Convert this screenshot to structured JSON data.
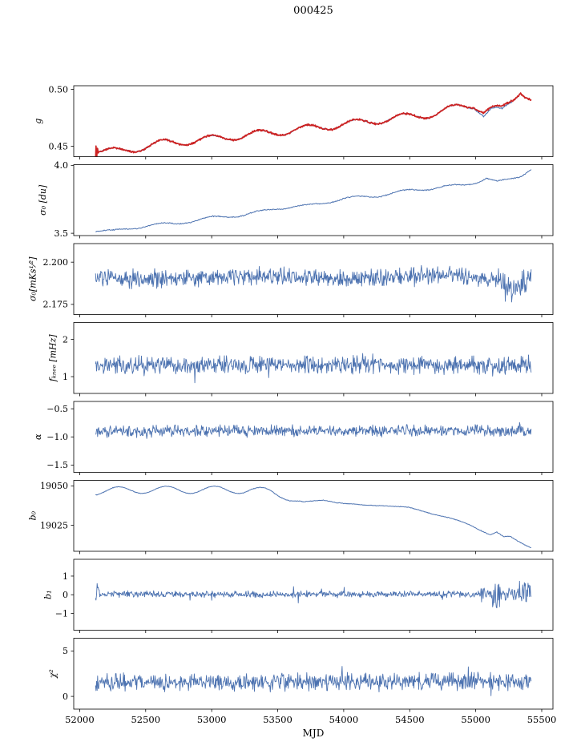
{
  "chart_data": {
    "type": "line",
    "title": "000425",
    "xlabel": "MJD",
    "grid": false,
    "legend_position": "none",
    "xlim": [
      51955,
      55585
    ],
    "x_range_data": [
      52120,
      55420
    ],
    "xticks": [
      52000,
      52500,
      53000,
      53500,
      54000,
      54500,
      55000,
      55500
    ],
    "xtick_labels": [
      "52000",
      "52500",
      "53000",
      "53500",
      "54000",
      "54500",
      "55000",
      "55500"
    ],
    "colors": {
      "line": "#4c72b0",
      "overlay": "#cc2222",
      "axis": "#000000"
    },
    "panels": [
      {
        "id": "g",
        "ylabel": "g",
        "ylim": [
          0.4408,
          0.5032
        ],
        "yticks": [
          0.45,
          0.5
        ],
        "ytick_labels": [
          "0.45",
          "0.50"
        ],
        "series": [
          {
            "name": "g-model",
            "color": "#4c72b0",
            "lw": 1.1,
            "step": 5,
            "seed": 11,
            "noise": 0.0006,
            "anchors": [
              [
                52120,
                0.4462
              ],
              [
                52300,
                0.4452
              ],
              [
                52600,
                0.4522
              ],
              [
                52900,
                0.4552
              ],
              [
                53200,
                0.459
              ],
              [
                53500,
                0.4625
              ],
              [
                53800,
                0.4665
              ],
              [
                54100,
                0.4705
              ],
              [
                54400,
                0.4748
              ],
              [
                54700,
                0.4788
              ],
              [
                54870,
                0.4845
              ],
              [
                54990,
                0.4862
              ],
              [
                55060,
                0.4778
              ],
              [
                55120,
                0.482
              ],
              [
                55200,
                0.48
              ],
              [
                55280,
                0.49
              ],
              [
                55340,
                0.4992
              ],
              [
                55420,
                0.4922
              ]
            ],
            "osc": {
              "amp": 0.0032,
              "period": 365,
              "phase": 52170
            }
          },
          {
            "name": "g-data",
            "color": "#cc2222",
            "lw": 1.7,
            "step": 4,
            "seed": 12,
            "noise": 0.0009,
            "noise_segments": [
              {
                "from": 52118,
                "to": 52142,
                "amp": 0.012
              }
            ],
            "anchors": [
              [
                52120,
                0.4462
              ],
              [
                52300,
                0.4452
              ],
              [
                52600,
                0.4522
              ],
              [
                52900,
                0.4552
              ],
              [
                53200,
                0.459
              ],
              [
                53500,
                0.4625
              ],
              [
                53800,
                0.4665
              ],
              [
                54100,
                0.4705
              ],
              [
                54400,
                0.4748
              ],
              [
                54700,
                0.4788
              ],
              [
                54870,
                0.4845
              ],
              [
                54990,
                0.4868
              ],
              [
                55060,
                0.4812
              ],
              [
                55120,
                0.4832
              ],
              [
                55200,
                0.4822
              ],
              [
                55280,
                0.4905
              ],
              [
                55340,
                0.4992
              ],
              [
                55420,
                0.4925
              ]
            ],
            "osc": {
              "amp": 0.0032,
              "period": 365,
              "phase": 52170
            }
          }
        ]
      },
      {
        "id": "sigma0-du",
        "ylabel": "σ₀ [du]",
        "ylim": [
          3.483,
          4.005
        ],
        "yticks": [
          3.5,
          4.0
        ],
        "ytick_labels": [
          "3.5",
          "4.0"
        ],
        "series": [
          {
            "name": "sigma0-du",
            "color": "#4c72b0",
            "lw": 1.0,
            "step": 5,
            "seed": 21,
            "noise": 0.005,
            "anchors": [
              [
                52130,
                3.52
              ],
              [
                52250,
                3.515
              ],
              [
                52500,
                3.555
              ],
              [
                52750,
                3.575
              ],
              [
                53000,
                3.615
              ],
              [
                53250,
                3.635
              ],
              [
                53500,
                3.685
              ],
              [
                53750,
                3.705
              ],
              [
                54000,
                3.755
              ],
              [
                54250,
                3.775
              ],
              [
                54500,
                3.815
              ],
              [
                54700,
                3.835
              ],
              [
                54900,
                3.855
              ],
              [
                55000,
                3.875
              ],
              [
                55080,
                3.905
              ],
              [
                55160,
                3.875
              ],
              [
                55250,
                3.895
              ],
              [
                55340,
                3.925
              ],
              [
                55420,
                3.975
              ]
            ],
            "osc": {
              "amp": 0.01,
              "period": 365,
              "phase": 52170
            }
          }
        ]
      },
      {
        "id": "sigma0-mks",
        "ylabel": "σ₀[mKs¹⁄²]",
        "ylim": [
          2.169,
          2.211
        ],
        "yticks": [
          2.175,
          2.2
        ],
        "ytick_labels": [
          "2.175",
          "2.200"
        ],
        "series": [
          {
            "name": "sigma0-mks",
            "color": "#4c72b0",
            "lw": 0.9,
            "step": 4,
            "seed": 31,
            "noise": 0.0065,
            "noise_segments": [
              {
                "from": 55150,
                "to": 55420,
                "amp": 0.009
              }
            ],
            "anchors": [
              [
                52120,
                2.19
              ],
              [
                53200,
                2.1915
              ],
              [
                54000,
                2.19
              ],
              [
                54800,
                2.1925
              ],
              [
                55150,
                2.189
              ],
              [
                55250,
                2.184
              ],
              [
                55320,
                2.186
              ],
              [
                55420,
                2.19
              ]
            ]
          }
        ]
      },
      {
        "id": "fknee",
        "ylabel": "fₖₙₑₑ [mHz]",
        "ylim": [
          0.55,
          2.45
        ],
        "yticks": [
          1,
          2
        ],
        "ytick_labels": [
          "1",
          "2"
        ],
        "series": [
          {
            "name": "fknee",
            "color": "#4c72b0",
            "lw": 0.9,
            "step": 4,
            "seed": 41,
            "noise": 0.3,
            "spike_prob": 0.012,
            "spike_mult": 2.4,
            "anchors": [
              [
                52120,
                1.3
              ],
              [
                55420,
                1.32
              ]
            ]
          }
        ]
      },
      {
        "id": "alpha",
        "ylabel": "α",
        "ylim": [
          -1.63,
          -0.37
        ],
        "yticks": [
          -0.5,
          -1.0,
          -1.5
        ],
        "ytick_labels": [
          "−0.5",
          "−1.0",
          "−1.5"
        ],
        "series": [
          {
            "name": "alpha",
            "color": "#4c72b0",
            "lw": 0.9,
            "step": 4,
            "seed": 51,
            "noise": 0.12,
            "spike_prob": 0.01,
            "spike_mult": 2.2,
            "anchors": [
              [
                52120,
                -0.895
              ],
              [
                55420,
                -0.89
              ]
            ]
          }
        ]
      },
      {
        "id": "b0",
        "ylabel": "b₀",
        "ylim": [
          19008.5,
          19053.5
        ],
        "yticks": [
          19025,
          19050
        ],
        "ytick_labels": [
          "19025",
          "19050"
        ],
        "series": [
          {
            "name": "b0",
            "color": "#4c72b0",
            "lw": 1.0,
            "step": 5,
            "seed": 61,
            "noise": 0.25,
            "anchors": [
              [
                52130,
                19046.5
              ],
              [
                52400,
                19047.5
              ],
              [
                53300,
                19047.5
              ],
              [
                53450,
                19046
              ],
              [
                53600,
                19041.5
              ],
              [
                53700,
                19039.5
              ],
              [
                53850,
                19041
              ],
              [
                54000,
                19039
              ],
              [
                54150,
                19037.5
              ],
              [
                54300,
                19037.8
              ],
              [
                54500,
                19036
              ],
              [
                54650,
                19033
              ],
              [
                54800,
                19029.5
              ],
              [
                54950,
                19025.5
              ],
              [
                55050,
                19021.5
              ],
              [
                55110,
                19019
              ],
              [
                55160,
                19020.5
              ],
              [
                55210,
                19017.5
              ],
              [
                55260,
                19017.8
              ],
              [
                55320,
                19015
              ],
              [
                55420,
                19011
              ]
            ],
            "osc": {
              "amp": 2.3,
              "period": 365,
              "phase": 52200,
              "fade_from": 53400,
              "fade_to": 53750,
              "fade_floor": 0.15
            }
          }
        ]
      },
      {
        "id": "b1",
        "ylabel": "b₁",
        "ylim": [
          -1.9,
          1.9
        ],
        "yticks": [
          1,
          0,
          -1
        ],
        "ytick_labels": [
          "1",
          "0",
          "−1"
        ],
        "series": [
          {
            "name": "b1",
            "color": "#4c72b0",
            "lw": 0.9,
            "step": 4,
            "seed": 71,
            "noise": 0.2,
            "spike_prob": 0.013,
            "spike_mult": 3.0,
            "noise_segments": [
              {
                "from": 52118,
                "to": 52150,
                "amp": 0.9
              },
              {
                "from": 55040,
                "to": 55125,
                "amp": 0.45
              },
              {
                "from": 55125,
                "to": 55185,
                "amp": 0.9
              },
              {
                "from": 55185,
                "to": 55325,
                "amp": 0.45
              },
              {
                "from": 55325,
                "to": 55420,
                "amp": 0.85
              }
            ],
            "anchors": [
              [
                52120,
                0.03
              ],
              [
                55420,
                0.03
              ]
            ]
          }
        ]
      },
      {
        "id": "chi2",
        "ylabel": "χ²",
        "ylim": [
          -1.4,
          6.4
        ],
        "yticks": [
          0,
          5
        ],
        "ytick_labels": [
          "0",
          "5"
        ],
        "series": [
          {
            "name": "chi2",
            "color": "#4c72b0",
            "lw": 0.9,
            "step": 4,
            "seed": 81,
            "noise": 1.15,
            "spike_prob": 0.015,
            "spike_mult": 2.6,
            "anchors": [
              [
                52120,
                1.55
              ],
              [
                55420,
                1.62
              ]
            ]
          }
        ]
      }
    ]
  }
}
